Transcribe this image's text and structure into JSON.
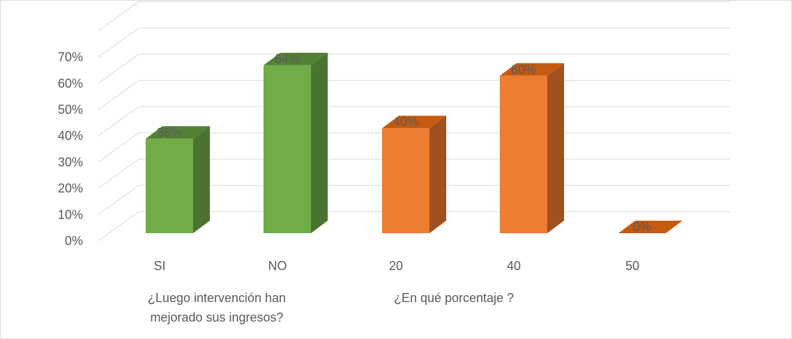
{
  "chart_data": {
    "type": "bar",
    "style": "3d-column",
    "ylim": [
      0,
      70
    ],
    "yticks": [
      0,
      10,
      20,
      30,
      40,
      50,
      60,
      70
    ],
    "ytick_labels": [
      "0%",
      "10%",
      "20%",
      "30%",
      "40%",
      "50%",
      "60%",
      "70%"
    ],
    "grid": true,
    "legend": "none",
    "categories": [
      "SI",
      "NO",
      "20",
      "40",
      "50"
    ],
    "values": [
      36,
      64,
      40,
      60,
      0
    ],
    "data_labels": [
      "36%",
      "64%",
      "40%",
      "60%",
      "0%"
    ],
    "groups": [
      {
        "label_lines": [
          "¿Luego intervención han",
          "mejorado sus ingresos?"
        ],
        "categories": [
          "SI",
          "NO"
        ],
        "color": "#70AD47",
        "side_color": "#4A7330",
        "top_color": "#548235"
      },
      {
        "label_lines": [
          "¿En qué porcentaje ?"
        ],
        "categories": [
          "20",
          "40",
          "50"
        ],
        "color": "#ED7D31",
        "side_color": "#A0511F",
        "top_color": "#C55A11"
      }
    ]
  }
}
